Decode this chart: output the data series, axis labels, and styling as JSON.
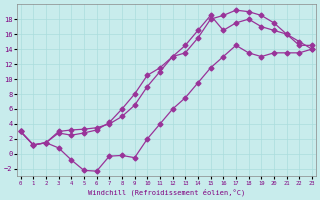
{
  "xlabel": "Windchill (Refroidissement éolien,°C)",
  "bg_color": "#c8ecec",
  "grid_color": "#aadddd",
  "line_color": "#993399",
  "ylim": [
    -3,
    20
  ],
  "xlim": [
    0,
    23
  ],
  "yticks": [
    -2,
    0,
    2,
    4,
    6,
    8,
    10,
    12,
    14,
    16,
    18
  ],
  "xticks": [
    0,
    1,
    2,
    3,
    4,
    5,
    6,
    7,
    8,
    9,
    10,
    11,
    12,
    13,
    14,
    15,
    16,
    17,
    18,
    19,
    20,
    21,
    22,
    23
  ],
  "line1_x": [
    0,
    1,
    2,
    3,
    4,
    5,
    6,
    7,
    8,
    9,
    10,
    11,
    12,
    13,
    14,
    15,
    16,
    17,
    18,
    19,
    20,
    21,
    22,
    23
  ],
  "line1_y": [
    3.0,
    1.2,
    1.5,
    3.0,
    3.2,
    3.3,
    3.5,
    4.0,
    5.0,
    6.5,
    9.0,
    11.0,
    13.0,
    13.5,
    15.5,
    18.0,
    18.5,
    19.2,
    19.0,
    18.5,
    17.5,
    16.0,
    15.0,
    14.0
  ],
  "line2_x": [
    0,
    1,
    2,
    3,
    4,
    5,
    6,
    7,
    8,
    9,
    10,
    11,
    12,
    13,
    14,
    15,
    16,
    17,
    18,
    19,
    20,
    21,
    22,
    23
  ],
  "line2_y": [
    3.0,
    1.2,
    1.5,
    2.8,
    2.5,
    2.8,
    3.2,
    4.2,
    6.0,
    8.0,
    10.5,
    11.5,
    13.0,
    14.5,
    16.5,
    18.5,
    16.5,
    17.5,
    18.0,
    17.0,
    16.5,
    16.0,
    14.5,
    14.5
  ],
  "line3_x": [
    0,
    1,
    2,
    3,
    4,
    5,
    6,
    7,
    8,
    9,
    10,
    11,
    12,
    13,
    14,
    15,
    16,
    17,
    18,
    19,
    20,
    21,
    22,
    23
  ],
  "line3_y": [
    3.0,
    1.2,
    1.5,
    0.8,
    -0.8,
    -2.2,
    -2.3,
    -0.3,
    -0.2,
    -0.5,
    2.0,
    4.0,
    6.0,
    7.5,
    9.5,
    11.5,
    13.0,
    14.5,
    13.5,
    13.0,
    13.5,
    13.5,
    13.5,
    14.0
  ]
}
